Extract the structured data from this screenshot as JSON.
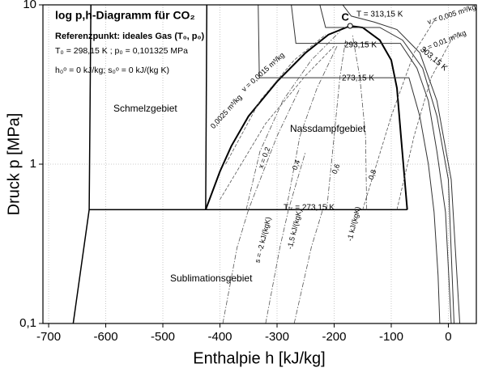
{
  "chart_data": {
    "type": "line",
    "xlabel": "Enthalpie  h [kJ/kg]",
    "ylabel": "Druck  p [MPa]",
    "xlim": [
      -710,
      49
    ],
    "ylim": [
      0.1,
      10
    ],
    "log_y": true,
    "grid": true,
    "xticks": [
      -700,
      -600,
      -500,
      -400,
      -300,
      -200,
      -100,
      0
    ],
    "yticks": [
      {
        "value": 0.1,
        "label": "0,1"
      },
      1,
      10
    ],
    "critical_point": {
      "label": "C",
      "h": -172,
      "p": 7.38,
      "color": "#ffffff"
    },
    "series": [
      {
        "color": "#000000",
        "width": 2,
        "dash": "solid",
        "x": [
          -425,
          -400,
          -380,
          -350,
          -300,
          -250,
          -210,
          -172,
          -150,
          -120,
          -100,
          -90,
          -83,
          -72
        ],
        "values": [
          0.518,
          0.9,
          1.3,
          2.0,
          3.3,
          5.0,
          6.5,
          7.38,
          7.2,
          6.0,
          4.5,
          3.0,
          1.5,
          0.518
        ]
      },
      {
        "color": "#000000",
        "width": 1.5,
        "dash": "solid",
        "x": [
          -629,
          -72
        ],
        "values": [
          0.518,
          0.518
        ]
      },
      {
        "color": "#000000",
        "width": 1.5,
        "dash": "solid",
        "x": [
          -657,
          -629,
          -626
        ],
        "values": [
          0.1,
          0.518,
          10
        ]
      },
      {
        "color": "#000000",
        "width": 1.5,
        "dash": "solid",
        "x": [
          -425,
          -423
        ],
        "values": [
          0.518,
          10
        ]
      },
      {
        "color": "#333333",
        "width": 1,
        "dash": "solid",
        "x": [
          -333,
          -331,
          -69,
          -50,
          -35,
          -25,
          -18,
          -15
        ],
        "values": [
          10,
          3.49,
          3.49,
          2,
          1,
          0.5,
          0.2,
          0.1
        ]
      },
      {
        "color": "#333333",
        "width": 1,
        "dash": "solid",
        "x": [
          -275,
          -267,
          -84,
          -55,
          -35,
          -20,
          -5,
          5
        ],
        "values": [
          10,
          5.73,
          5.73,
          4,
          2.5,
          1.2,
          0.5,
          0.1
        ]
      },
      {
        "color": "#333333",
        "width": 1,
        "dash": "solid",
        "x": [
          -225,
          -215,
          -120,
          -80,
          -45,
          -20,
          0,
          10
        ],
        "values": [
          10,
          7.21,
          7.21,
          6,
          4,
          2,
          0.8,
          0.1
        ]
      },
      {
        "color": "#333333",
        "width": 1,
        "dash": "solid",
        "x": [
          -185,
          -170,
          -130,
          -90,
          -50,
          -20,
          5,
          20
        ],
        "values": [
          10,
          8.5,
          7.8,
          7,
          5,
          2.5,
          0.8,
          0.1
        ]
      },
      {
        "color": "#555555",
        "width": 0.8,
        "dash": "dashdot",
        "x": [
          -354,
          -330,
          -290,
          -240,
          -190
        ],
        "values": [
          0.518,
          1.2,
          2.5,
          4.5,
          6.8
        ]
      },
      {
        "color": "#555555",
        "width": 0.8,
        "dash": "dashdot",
        "x": [
          -284,
          -260,
          -230,
          -195
        ],
        "values": [
          0.518,
          1.5,
          3,
          5.5
        ]
      },
      {
        "color": "#555555",
        "width": 0.8,
        "dash": "dashdot",
        "x": [
          -213,
          -200,
          -190,
          -180
        ],
        "values": [
          0.518,
          1.5,
          3.5,
          6
        ]
      },
      {
        "color": "#555555",
        "width": 0.8,
        "dash": "dashdot",
        "x": [
          -143,
          -145,
          -155,
          -168
        ],
        "values": [
          0.518,
          1.5,
          3.5,
          6.5
        ]
      },
      {
        "color": "#555555",
        "width": 0.8,
        "dash": "dashdot",
        "x": [
          -395,
          -370,
          -350,
          -300,
          -260
        ],
        "values": [
          0.1,
          0.3,
          0.518,
          1.5,
          3
        ]
      },
      {
        "color": "#555555",
        "width": 0.8,
        "dash": "dashdot",
        "x": [
          -320,
          -295,
          -280,
          -250
        ],
        "values": [
          0.1,
          0.3,
          0.518,
          1.2
        ]
      },
      {
        "color": "#555555",
        "width": 0.8,
        "dash": "dashdot",
        "x": [
          -270,
          -240,
          -220
        ],
        "values": [
          0.1,
          0.3,
          0.518
        ]
      },
      {
        "color": "#555555",
        "width": 0.8,
        "dash": "dashed",
        "x": [
          -390,
          -330,
          -270,
          -215
        ],
        "values": [
          1.0,
          2.5,
          4.5,
          6.5
        ]
      },
      {
        "color": "#555555",
        "width": 0.8,
        "dash": "dashed",
        "x": [
          -400,
          -320,
          -250,
          -200
        ],
        "values": [
          0.6,
          1.8,
          3.6,
          5.5
        ]
      },
      {
        "color": "#555555",
        "width": 0.8,
        "dash": "dashed",
        "x": [
          -150,
          -100,
          -60,
          -20
        ],
        "values": [
          0.518,
          2,
          5,
          8.5
        ]
      },
      {
        "color": "#555555",
        "width": 0.8,
        "dash": "dashed",
        "x": [
          -90,
          -60,
          -30,
          10
        ],
        "values": [
          0.518,
          1.5,
          3.5,
          6.5
        ]
      }
    ],
    "annotations": [
      "log p,h-Diagramm für CO₂",
      "Referenzpunkt: ideales Gas (T₀, p₀)",
      "T₀ = 298,15 K ; p₀ = 0,101325 MPa",
      "h₀ᵒ = 0 kJ/kg; s₀ᵒ = 0 kJ/(kg K)",
      "Schmelzgebiet",
      "Nassdampfgebiet",
      "Sublimationsgebiet",
      "T = 313,15 K",
      "303,15 K",
      "293,15 K",
      "273,15 K",
      "Tₜᵣ = 273,15 K",
      "v = 0,0015 m³/kg",
      "0,0025 m³/kg",
      "v = 0,005 m³/kg",
      "v = 0,01 m³/kg",
      "x = 0,2",
      "0,4",
      "0,6",
      "0,8",
      "s = -2 kJ/(kgK)",
      "-1,5 kJ/(kgK)",
      "-1 kJ/(kgK)"
    ]
  }
}
